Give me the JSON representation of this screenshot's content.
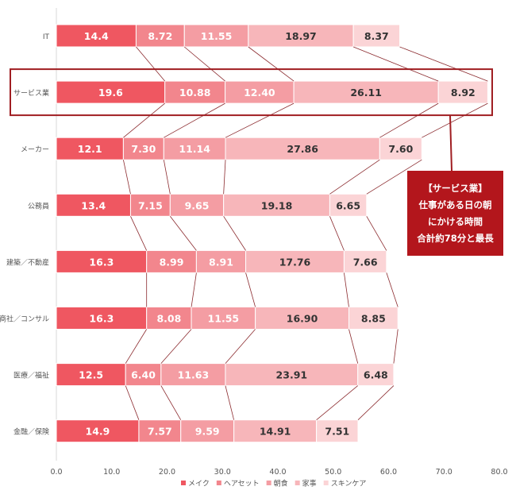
{
  "chart_data": {
    "type": "bar",
    "orientation": "horizontal",
    "stacked": true,
    "categories": [
      "IT",
      "サービス業",
      "メーカー",
      "公務員",
      "建築／不動産",
      "商社／コンサル",
      "医療／福祉",
      "金融／保険"
    ],
    "series": [
      {
        "name": "メイク",
        "color": "#ef5761",
        "values": [
          14.4,
          19.6,
          12.1,
          13.4,
          16.3,
          16.3,
          12.5,
          14.9
        ],
        "labels": [
          "14.4",
          "19.6",
          "12.1",
          "13.4",
          "16.3",
          "16.3",
          "12.5",
          "14.9"
        ]
      },
      {
        "name": "ヘアセット",
        "color": "#f2868d",
        "values": [
          8.72,
          10.88,
          7.3,
          7.15,
          8.99,
          8.08,
          6.4,
          7.57
        ],
        "labels": [
          "8.72",
          "10.88",
          "7.30",
          "7.15",
          "8.99",
          "8.08",
          "6.40",
          "7.57"
        ]
      },
      {
        "name": "朝食",
        "color": "#f49da3",
        "values": [
          11.55,
          12.4,
          11.14,
          9.65,
          8.91,
          11.55,
          11.63,
          9.59
        ],
        "labels": [
          "11.55",
          "12.40",
          "11.14",
          "9.65",
          "8.91",
          "11.55",
          "11.63",
          "9.59"
        ]
      },
      {
        "name": "家事",
        "color": "#f7b6ba",
        "values": [
          18.97,
          26.11,
          27.86,
          19.18,
          17.76,
          16.9,
          23.91,
          14.91
        ],
        "labels": [
          "18.97",
          "26.11",
          "27.86",
          "19.18",
          "17.76",
          "16.90",
          "23.91",
          "14.91"
        ]
      },
      {
        "name": "スキンケア",
        "color": "#fbd4d6",
        "values": [
          8.37,
          8.92,
          7.6,
          6.65,
          7.66,
          8.85,
          6.48,
          7.51
        ],
        "labels": [
          "8.37",
          "8.92",
          "7.60",
          "6.65",
          "7.66",
          "8.85",
          "6.48",
          "7.51"
        ]
      }
    ],
    "xlim": [
      0,
      80
    ],
    "xticks": [
      "0.0",
      "10.0",
      "20.0",
      "30.0",
      "40.0",
      "50.0",
      "60.0",
      "70.0",
      "80.0"
    ],
    "legend_position": "bottom",
    "grid": false,
    "highlight_category": "サービス業",
    "highlight_color": "#a01e22",
    "annotation": [
      "【サービス業】",
      "仕事がある日の朝",
      "にかける時間",
      "合計約78分と最長"
    ]
  }
}
